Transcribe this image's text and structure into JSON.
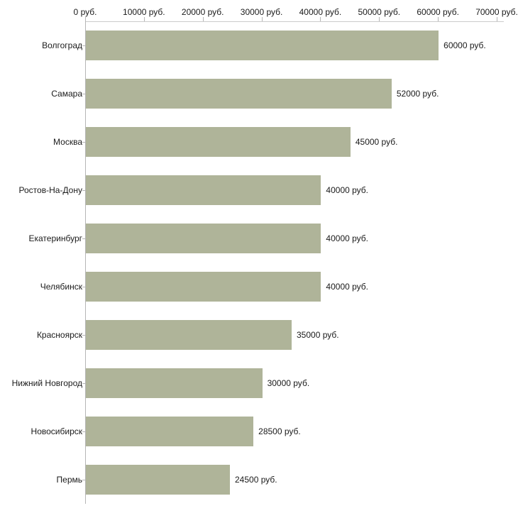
{
  "chart_data": {
    "type": "bar",
    "orientation": "horizontal",
    "title": "",
    "xlabel": "",
    "ylabel": "",
    "grid": false,
    "legend": false,
    "bar_color": "#afb499",
    "categories": [
      "Волгоград",
      "Самара",
      "Москва",
      "Ростов-На-Дону",
      "Екатеринбург",
      "Челябинск",
      "Красноярск",
      "Нижний Новгород",
      "Новосибирск",
      "Пермь"
    ],
    "values": [
      60000,
      52000,
      45000,
      40000,
      40000,
      40000,
      35000,
      30000,
      28500,
      24500
    ],
    "value_labels": [
      "60000 руб.",
      "52000 руб.",
      "45000 руб.",
      "40000 руб.",
      "40000 руб.",
      "40000 руб.",
      "35000 руб.",
      "30000 руб.",
      "28500 руб.",
      "24500 руб."
    ],
    "x_axis": {
      "position": "top",
      "min": 0,
      "max": 70000,
      "ticks": [
        0,
        10000,
        20000,
        30000,
        40000,
        50000,
        60000,
        70000
      ],
      "tick_labels": [
        "0 руб.",
        "10000 руб.",
        "20000 руб.",
        "30000 руб.",
        "40000 руб.",
        "50000 руб.",
        "60000 руб.",
        "70000 руб."
      ]
    }
  }
}
